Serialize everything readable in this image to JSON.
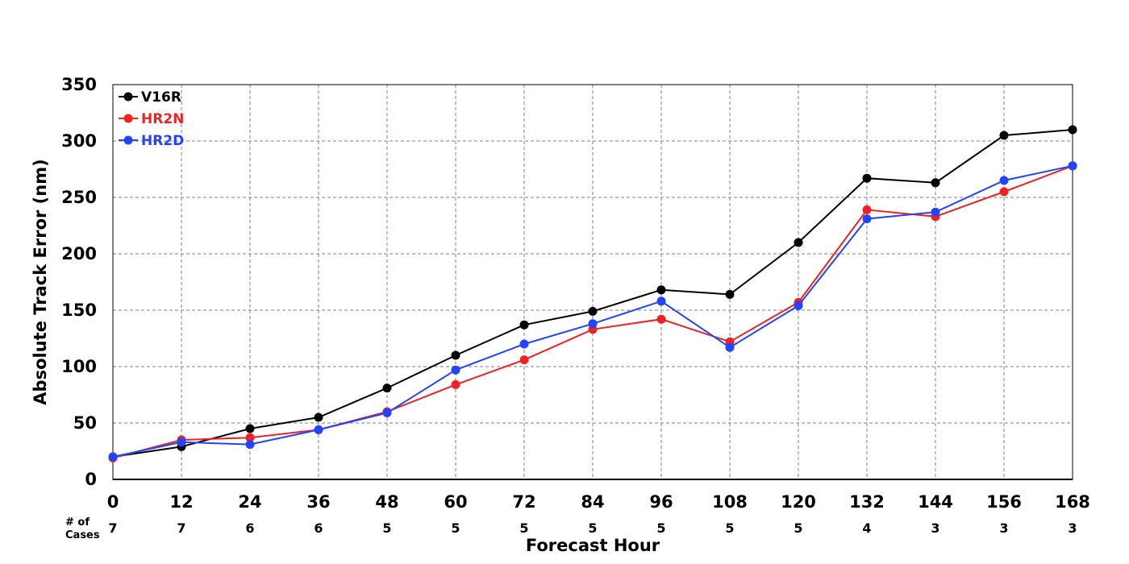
{
  "chart_data": {
    "type": "line",
    "xlabel": "Forecast Hour",
    "ylabel": "Absolute Track Error (nm)",
    "xlim": [
      0,
      168
    ],
    "ylim": [
      0,
      350
    ],
    "x_ticks": [
      "0",
      "12",
      "24",
      "36",
      "48",
      "60",
      "72",
      "84",
      "96",
      "108",
      "120",
      "132",
      "144",
      "156",
      "168"
    ],
    "y_ticks": [
      "0",
      "50",
      "100",
      "150",
      "200",
      "250",
      "300",
      "350"
    ],
    "grid": true,
    "legend_position": "top-left",
    "cases_label_line1": "# of",
    "cases_label_line2": "Cases",
    "cases": [
      "7",
      "7",
      "6",
      "6",
      "5",
      "5",
      "5",
      "5",
      "5",
      "5",
      "5",
      "4",
      "3",
      "3",
      "3"
    ],
    "x": [
      0,
      12,
      24,
      36,
      48,
      60,
      72,
      84,
      96,
      108,
      120,
      132,
      144,
      156,
      168
    ],
    "series": [
      {
        "name": "V16R",
        "color": "#000000",
        "values": [
          20,
          29,
          45,
          55,
          81,
          110,
          137,
          149,
          168,
          164,
          210,
          267,
          263,
          305,
          310
        ]
      },
      {
        "name": "HR2N",
        "color": "#ee2222",
        "values": [
          19,
          35,
          37,
          44,
          60,
          84,
          106,
          133,
          142,
          122,
          157,
          239,
          233,
          255,
          278
        ]
      },
      {
        "name": "HR2D",
        "color": "#2244ff",
        "values": [
          20,
          33,
          31,
          44,
          59,
          97,
          120,
          138,
          158,
          117,
          154,
          231,
          237,
          265,
          278
        ]
      }
    ]
  }
}
